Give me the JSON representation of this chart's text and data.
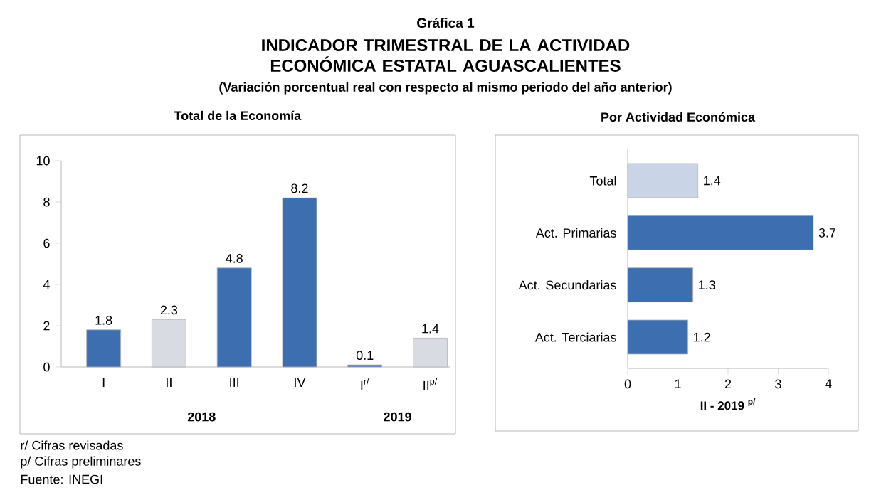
{
  "chart_data": [
    {
      "type": "other",
      "title": "Gráfica 1",
      "subtitle": "INDICADOR TRIMESTRAL DE LA ACTIVIDAD ECONÓMICA ESTATAL AGUASCALIENTES",
      "annotations": [
        "(Variación porcentual real con respecto al mismo periodo del año anterior)",
        "r/ Cifras revisadas",
        "p/ Cifras preliminares",
        "Fuente: INEGI"
      ]
    },
    {
      "type": "bar",
      "title": "Total de la Economía",
      "categories": [
        "I",
        "II",
        "III",
        "IV",
        "I$^{r/}$",
        "II$^{p/}$"
      ],
      "values": [
        1.8,
        2.3,
        4.8,
        8.2,
        0.1,
        1.4
      ],
      "colors": [
        "#3d6fb0",
        "#d8dce2",
        "#3d6fb0",
        "#3d6fb0",
        "#3d6fb0",
        "#d8dce2"
      ],
      "ylim": [
        0,
        10
      ],
      "yticks": [
        0,
        2,
        4,
        6,
        8,
        10
      ],
      "data_labels": true,
      "annotations": [
        "2018",
        "2019"
      ]
    },
    {
      "type": "bar",
      "orientation": "horizontal",
      "title": "Por Actividad Económica",
      "xlabel": "II - 2019 $^{p/}$",
      "categories": [
        "Total",
        "Act. Primarias",
        "Act. Secundarias",
        "Act. Terciarias"
      ],
      "values": [
        1.4,
        3.7,
        1.3,
        1.2
      ],
      "colors": [
        "#c9d5e6",
        "#3d6fb0",
        "#3d6fb0",
        "#3d6fb0"
      ],
      "xlim": [
        0,
        4
      ],
      "xticks": [
        0,
        1,
        2,
        3,
        4
      ],
      "data_labels": true
    }
  ]
}
